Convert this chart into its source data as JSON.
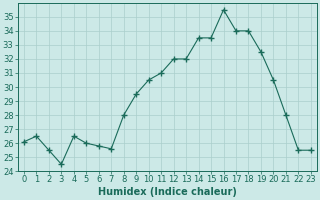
{
  "x": [
    0,
    1,
    2,
    3,
    4,
    5,
    6,
    7,
    8,
    9,
    10,
    11,
    12,
    13,
    14,
    15,
    16,
    17,
    18,
    19,
    20,
    21,
    22,
    23
  ],
  "y": [
    26.1,
    26.5,
    25.5,
    24.5,
    26.5,
    26.0,
    25.8,
    25.6,
    28.0,
    29.5,
    30.5,
    31.0,
    32.0,
    32.0,
    33.5,
    33.5,
    35.5,
    34.0,
    34.0,
    32.5,
    30.5,
    28.0,
    25.5,
    25.5
  ],
  "line_color": "#1a6b5a",
  "marker": "+",
  "marker_size": 4,
  "xlabel": "Humidex (Indice chaleur)",
  "ylim": [
    24,
    36
  ],
  "yticks": [
    24,
    25,
    26,
    27,
    28,
    29,
    30,
    31,
    32,
    33,
    34,
    35
  ],
  "xlim": [
    -0.5,
    23.5
  ],
  "bg_color": "#cce9e7",
  "grid_color": "#aacfcc",
  "tick_fontsize": 6,
  "xlabel_fontsize": 7
}
